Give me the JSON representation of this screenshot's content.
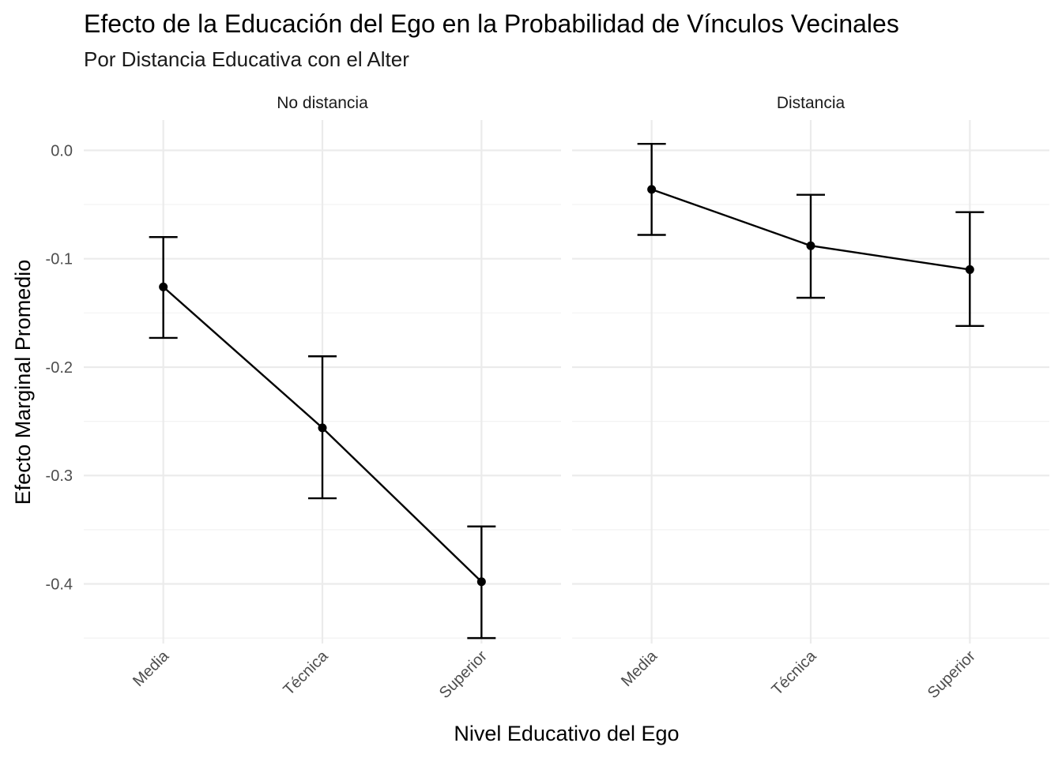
{
  "chart_data": {
    "type": "line",
    "title": "Efecto de la Educación del Ego en la Probabilidad de Vínculos Vecinales",
    "subtitle": "Por Distancia Educativa con el Alter",
    "xlabel": "Nivel Educativo del Ego",
    "ylabel": "Efecto Marginal Promedio",
    "categories": [
      "Media",
      "Técnica",
      "Superior"
    ],
    "y_ticks": [
      0.0,
      -0.1,
      -0.2,
      -0.3,
      -0.4
    ],
    "y_tick_labels": [
      "0.0",
      "-0.1",
      "-0.2",
      "-0.3",
      "-0.4"
    ],
    "ylim": [
      -0.455,
      0.028
    ],
    "grid": true,
    "facets": [
      {
        "label": "No distancia",
        "values": [
          -0.126,
          -0.256,
          -0.398
        ],
        "lower": [
          -0.173,
          -0.321,
          -0.45
        ],
        "upper": [
          -0.08,
          -0.19,
          -0.347
        ]
      },
      {
        "label": "Distancia",
        "values": [
          -0.036,
          -0.088,
          -0.11
        ],
        "lower": [
          -0.078,
          -0.136,
          -0.162
        ],
        "upper": [
          0.006,
          -0.041,
          -0.057
        ]
      }
    ]
  }
}
